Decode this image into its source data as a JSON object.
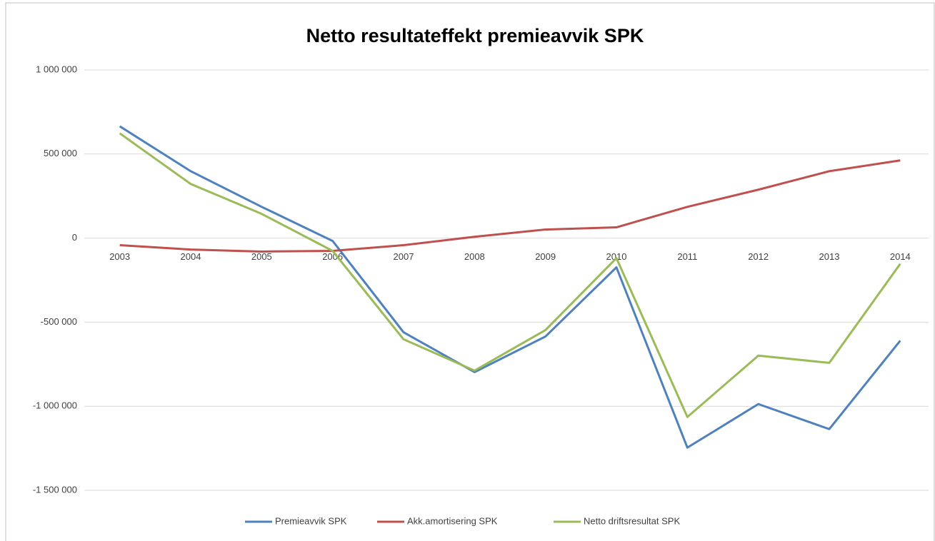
{
  "chart_data": {
    "type": "line",
    "title": "Netto resultateffekt premieavvik SPK",
    "categories": [
      "2003",
      "2004",
      "2005",
      "2006",
      "2007",
      "2008",
      "2009",
      "2010",
      "2011",
      "2012",
      "2013",
      "2014"
    ],
    "series": [
      {
        "name": "Premieavvik SPK",
        "color": "#4f81bd",
        "values": [
          665000,
          398000,
          186000,
          -17000,
          -560000,
          -797000,
          -585000,
          -174000,
          -1246000,
          -987000,
          -1136000,
          -610000
        ]
      },
      {
        "name": "Akk.amortisering SPK",
        "color": "#c0504d",
        "values": [
          -42000,
          -68000,
          -80000,
          -76000,
          -42000,
          8000,
          51000,
          64000,
          186000,
          288000,
          398000,
          462000
        ]
      },
      {
        "name": "Netto driftsresultat SPK",
        "color": "#9bbb59",
        "values": [
          623000,
          322000,
          144000,
          -76000,
          -602000,
          -788000,
          -547000,
          -119000,
          -1064000,
          -699000,
          -742000,
          -153000
        ]
      }
    ],
    "ylim": [
      -1500000,
      1000000
    ],
    "yticks": [
      {
        "value": -1500000,
        "label": "-1 500 000"
      },
      {
        "value": -1000000,
        "label": "-1 000 000"
      },
      {
        "value": -500000,
        "label": "-500 000"
      },
      0,
      {
        "value": 500000,
        "label": "500 000"
      },
      {
        "value": 1000000,
        "label": "1 000 000"
      }
    ],
    "grid": true,
    "legend": "bottom"
  }
}
